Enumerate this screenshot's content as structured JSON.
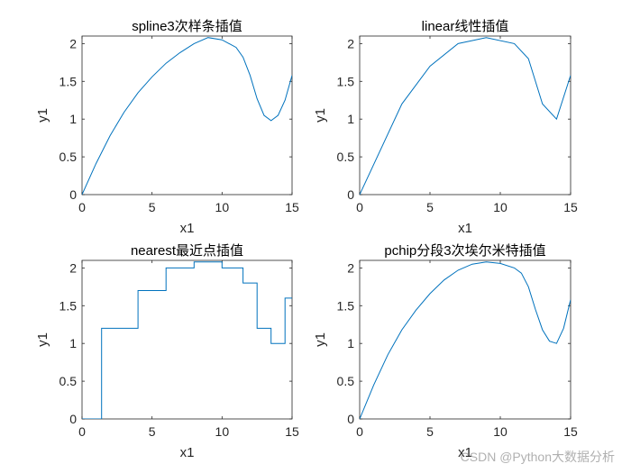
{
  "chart_data": [
    {
      "type": "line",
      "title": "spline3次样条插值",
      "xlabel": "x1",
      "ylabel": "y1",
      "xlim": [
        0,
        15
      ],
      "ylim": [
        0,
        2.1
      ],
      "xticks": [
        "0",
        "5",
        "10",
        "15"
      ],
      "yticks": [
        "0",
        "0.5",
        "1",
        "1.5",
        "2"
      ],
      "grid": false,
      "color": "#0072BD",
      "x": [
        0,
        1,
        2,
        3,
        4,
        5,
        6,
        7,
        8,
        9,
        10,
        11,
        11.5,
        12,
        12.5,
        13,
        13.5,
        14,
        14.5,
        15
      ],
      "y": [
        0,
        0.41,
        0.78,
        1.09,
        1.35,
        1.56,
        1.74,
        1.88,
        2.0,
        2.08,
        2.05,
        1.95,
        1.82,
        1.58,
        1.27,
        1.05,
        0.98,
        1.05,
        1.25,
        1.58
      ]
    },
    {
      "type": "line",
      "title": "linear线性插值",
      "xlabel": "x1",
      "ylabel": "y1",
      "xlim": [
        0,
        15
      ],
      "ylim": [
        0,
        2.1
      ],
      "xticks": [
        "0",
        "5",
        "10",
        "15"
      ],
      "yticks": [
        "0",
        "0.5",
        "1",
        "1.5",
        "2"
      ],
      "grid": false,
      "color": "#0072BD",
      "x": [
        0,
        3,
        5,
        7,
        9,
        11,
        12,
        13,
        14,
        15
      ],
      "y": [
        0,
        1.2,
        1.7,
        2.0,
        2.08,
        2.0,
        1.8,
        1.2,
        1.0,
        1.58
      ]
    },
    {
      "type": "line",
      "title": "nearest最近点插值",
      "xlabel": "x1",
      "ylabel": "y1",
      "xlim": [
        0,
        15
      ],
      "ylim": [
        0,
        2.1
      ],
      "xticks": [
        "0",
        "5",
        "10",
        "15"
      ],
      "yticks": [
        "0",
        "0.5",
        "1",
        "1.5",
        "2"
      ],
      "grid": false,
      "color": "#0072BD",
      "x": [
        0,
        1.4,
        1.4,
        1.5,
        4,
        4,
        6,
        6,
        8,
        8,
        10,
        10,
        11.5,
        11.5,
        12.5,
        12.5,
        13.5,
        13.5,
        14.5,
        14.5,
        15
      ],
      "y": [
        0,
        0,
        1.2,
        1.2,
        1.2,
        1.7,
        1.7,
        2.0,
        2.0,
        2.08,
        2.08,
        2.0,
        2.0,
        1.8,
        1.8,
        1.2,
        1.2,
        1.0,
        1.0,
        1.6,
        1.6
      ]
    },
    {
      "type": "line",
      "title": "pchip分段3次埃尔米特插值",
      "xlabel": "x1",
      "ylabel": "y1",
      "xlim": [
        0,
        15
      ],
      "ylim": [
        0,
        2.1
      ],
      "xticks": [
        "0",
        "5",
        "10",
        "15"
      ],
      "yticks": [
        "0",
        "0.5",
        "1",
        "1.5",
        "2"
      ],
      "grid": false,
      "color": "#0072BD",
      "x": [
        0,
        1,
        2,
        3,
        4,
        5,
        6,
        7,
        8,
        9,
        10,
        11,
        11.5,
        12,
        12.5,
        13,
        13.5,
        14,
        14.5,
        15
      ],
      "y": [
        0,
        0.45,
        0.85,
        1.18,
        1.44,
        1.66,
        1.84,
        1.97,
        2.05,
        2.08,
        2.06,
        2.0,
        1.93,
        1.75,
        1.45,
        1.18,
        1.03,
        1.0,
        1.2,
        1.58
      ]
    }
  ],
  "watermark": "CSDN @Python大数据分析"
}
